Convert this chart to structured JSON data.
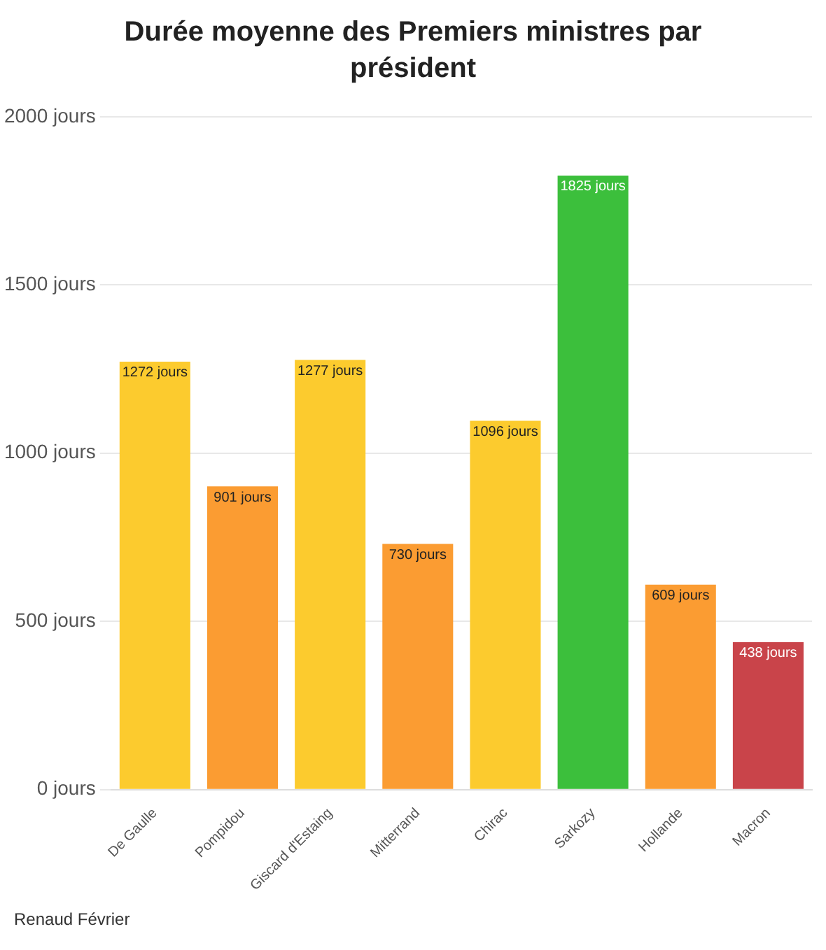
{
  "chart_data": {
    "type": "bar",
    "title": "Durée moyenne des Premiers ministres par président",
    "categories": [
      "De Gaulle",
      "Pompidou",
      "Giscard d'Estaing",
      "Mitterrand",
      "Chirac",
      "Sarkozy",
      "Hollande",
      "Macron"
    ],
    "values": [
      1272,
      901,
      1277,
      730,
      1096,
      1825,
      609,
      438
    ],
    "colors": [
      "#fccb2e",
      "#fb9c32",
      "#fccb2e",
      "#fb9c32",
      "#fccb2e",
      "#3cbf3c",
      "#fb9c32",
      "#c9444a"
    ],
    "value_labels": [
      "1272 jours",
      "901 jours",
      "1277 jours",
      "730 jours",
      "1096 jours",
      "1825 jours",
      "609 jours",
      "438 jours"
    ],
    "ylim": [
      0,
      2000
    ],
    "yticks": [
      {
        "value": 0,
        "label": "0 jours"
      },
      {
        "value": 500,
        "label": "500 jours"
      },
      {
        "value": 1000,
        "label": "1000 jours"
      },
      {
        "value": 1500,
        "label": "1500 jours"
      },
      {
        "value": 2000,
        "label": "2000 jours"
      }
    ],
    "grid": "y",
    "annotations": [
      "Renaud Février"
    ]
  }
}
